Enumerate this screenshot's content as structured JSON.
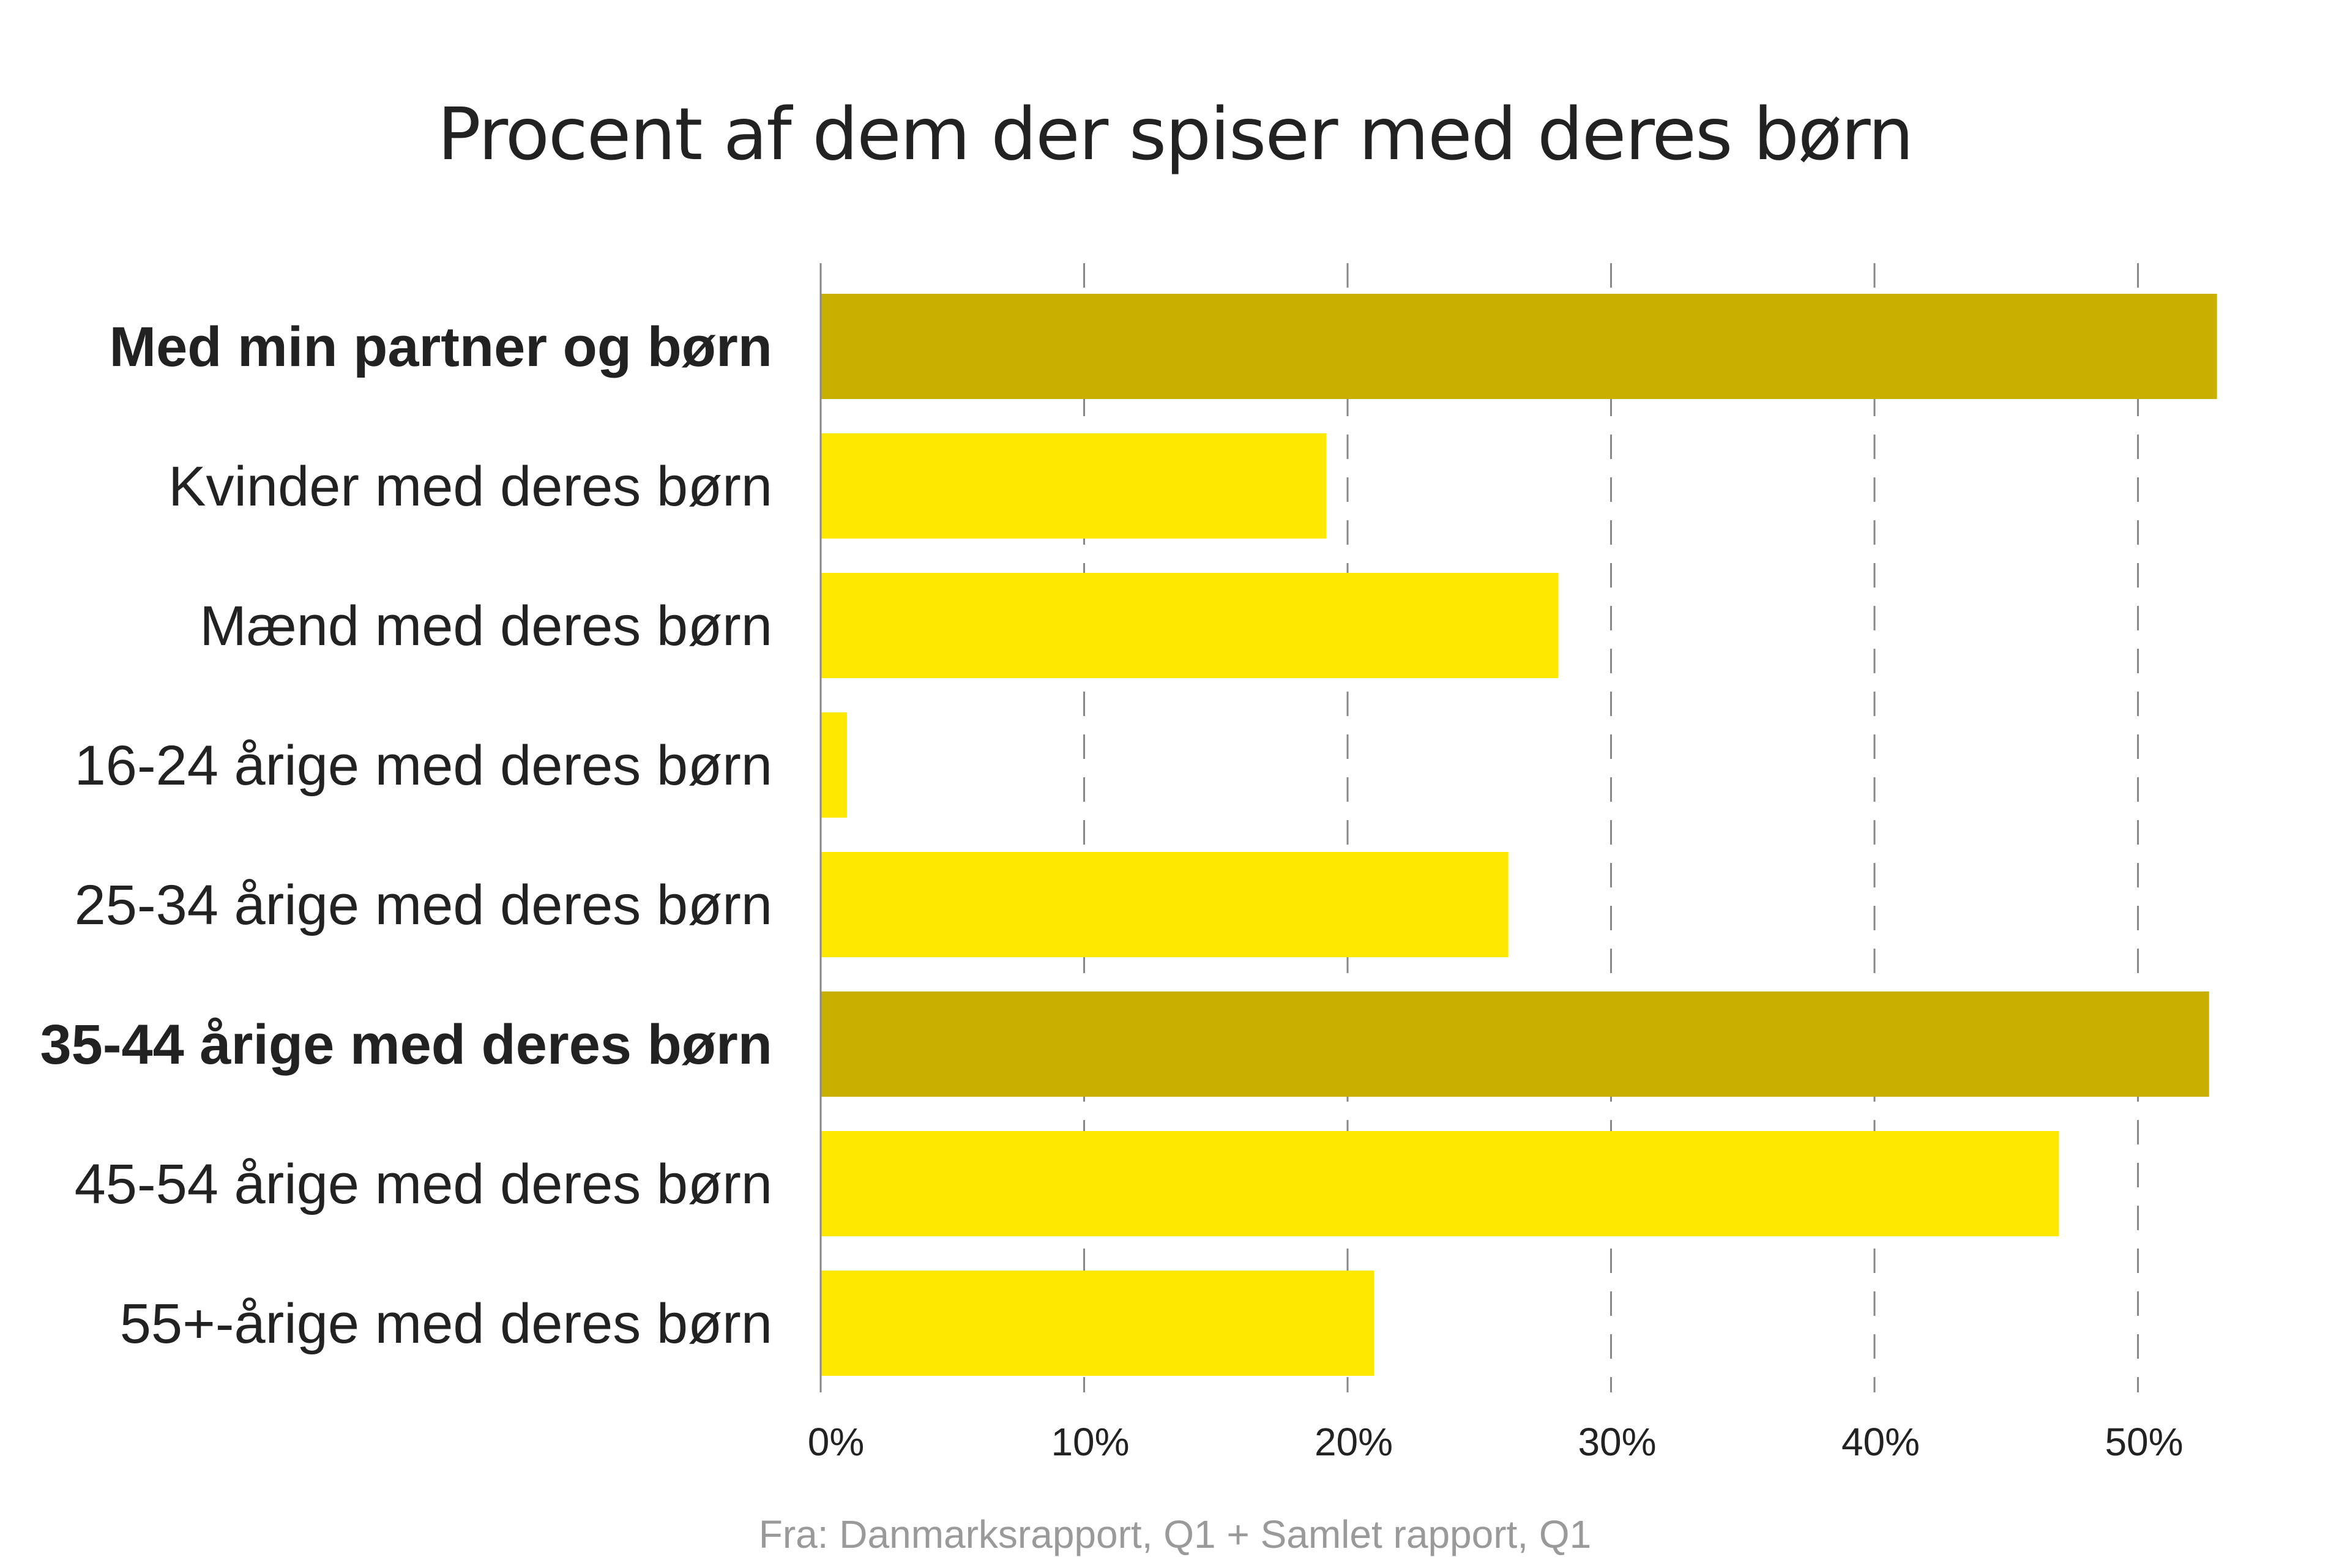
{
  "chart_data": {
    "type": "bar",
    "orientation": "horizontal",
    "title": "Procent af dem der spiser med deres børn",
    "categories": [
      "Med min partner og børn",
      "Kvinder med deres børn",
      "Mænd med deres børn",
      "16-24 årige med deres børn",
      "25-34 årige med deres børn",
      "35-44 årige med deres børn",
      "45-54 årige med deres børn",
      "55+-årige med deres børn"
    ],
    "values": [
      53.0,
      19.2,
      28.0,
      1.0,
      26.1,
      52.7,
      47.0,
      21.0
    ],
    "highlighted": [
      true,
      false,
      false,
      false,
      false,
      true,
      false,
      false
    ],
    "xlim": [
      0,
      55
    ],
    "xticks": [
      0,
      10,
      20,
      30,
      40,
      50
    ],
    "xtick_labels": [
      "0%",
      "10%",
      "20%",
      "30%",
      "40%",
      "50%"
    ],
    "grid": "vertical dashed",
    "colors": {
      "highlight": "#C9B000",
      "default": "#FFE800",
      "grid": "#888888",
      "text": "#222222"
    },
    "source": "Fra: Danmarksrapport, Q1 + Samlet rapport, Q1"
  }
}
